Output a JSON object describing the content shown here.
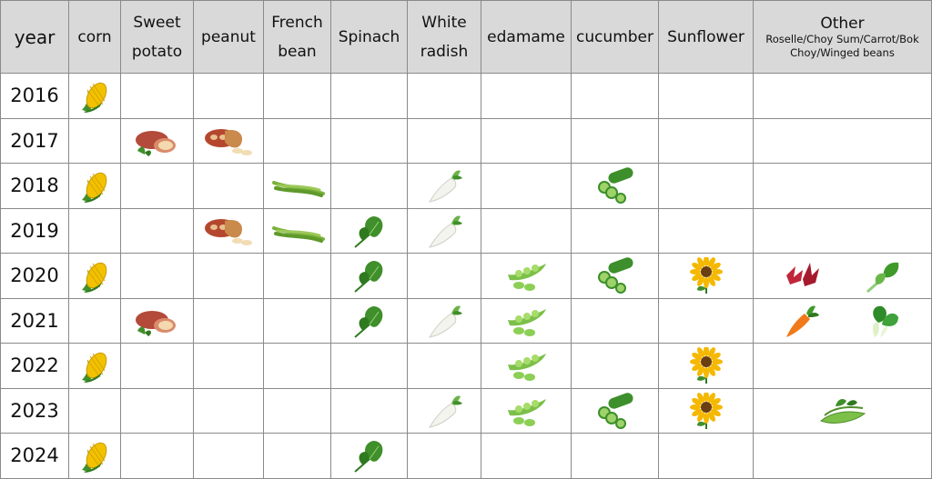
{
  "header": {
    "year": "year",
    "columns": [
      {
        "id": "corn",
        "lines": [
          "corn"
        ]
      },
      {
        "id": "sweet-potato",
        "lines": [
          "Sweet",
          "potato"
        ]
      },
      {
        "id": "peanut",
        "lines": [
          "peanut"
        ]
      },
      {
        "id": "french-bean",
        "lines": [
          "French",
          "bean"
        ]
      },
      {
        "id": "spinach",
        "lines": [
          "Spinach"
        ]
      },
      {
        "id": "white-radish",
        "lines": [
          "White",
          "radish"
        ]
      },
      {
        "id": "edamame",
        "lines": [
          "edamame"
        ]
      },
      {
        "id": "cucumber",
        "lines": [
          "cucumber"
        ]
      },
      {
        "id": "sunflower",
        "lines": [
          "Sunflower"
        ]
      }
    ],
    "other_title": "Other",
    "other_subtitle": "Roselle/Choy Sum/Carrot/Bok Choy/Winged beans"
  },
  "rows": [
    {
      "year": "2016",
      "crops": [
        "corn"
      ],
      "other": []
    },
    {
      "year": "2017",
      "crops": [
        "sweet-potato",
        "peanut"
      ],
      "other": []
    },
    {
      "year": "2018",
      "crops": [
        "corn",
        "french-bean",
        "white-radish",
        "cucumber"
      ],
      "other": []
    },
    {
      "year": "2019",
      "crops": [
        "peanut",
        "french-bean",
        "spinach",
        "white-radish"
      ],
      "other": []
    },
    {
      "year": "2020",
      "crops": [
        "corn",
        "spinach",
        "edamame",
        "cucumber",
        "sunflower"
      ],
      "other": [
        "roselle",
        "choy-sum"
      ]
    },
    {
      "year": "2021",
      "crops": [
        "sweet-potato",
        "spinach",
        "white-radish",
        "edamame"
      ],
      "other": [
        "carrot",
        "bok-choy"
      ]
    },
    {
      "year": "2022",
      "crops": [
        "corn",
        "edamame",
        "sunflower"
      ],
      "other": []
    },
    {
      "year": "2023",
      "crops": [
        "white-radish",
        "edamame",
        "cucumber",
        "sunflower"
      ],
      "other": [
        "winged-beans"
      ]
    },
    {
      "year": "2024",
      "crops": [
        "corn",
        "spinach"
      ],
      "other": []
    }
  ],
  "icons": {
    "corn": "corn-icon",
    "sweet-potato": "sweet-potato-icon",
    "peanut": "peanut-icon",
    "french-bean": "french-bean-icon",
    "spinach": "spinach-icon",
    "white-radish": "white-radish-icon",
    "edamame": "edamame-icon",
    "cucumber": "cucumber-icon",
    "sunflower": "sunflower-icon",
    "roselle": "roselle-icon",
    "choy-sum": "choy-sum-icon",
    "carrot": "carrot-icon",
    "bok-choy": "bok-choy-icon",
    "winged-beans": "winged-beans-icon"
  },
  "colors": {
    "header_bg": "#d9d9d9",
    "grid": "#8a8a8a",
    "corn_yellow": "#f2c200",
    "leaf_green": "#3f8f2a",
    "sweet_potato": "#b34a3a",
    "peanut": "#c98a4b",
    "sunflower_petal": "#f5b800",
    "carrot_orange": "#f07a1a",
    "roselle_red": "#c0263a"
  }
}
